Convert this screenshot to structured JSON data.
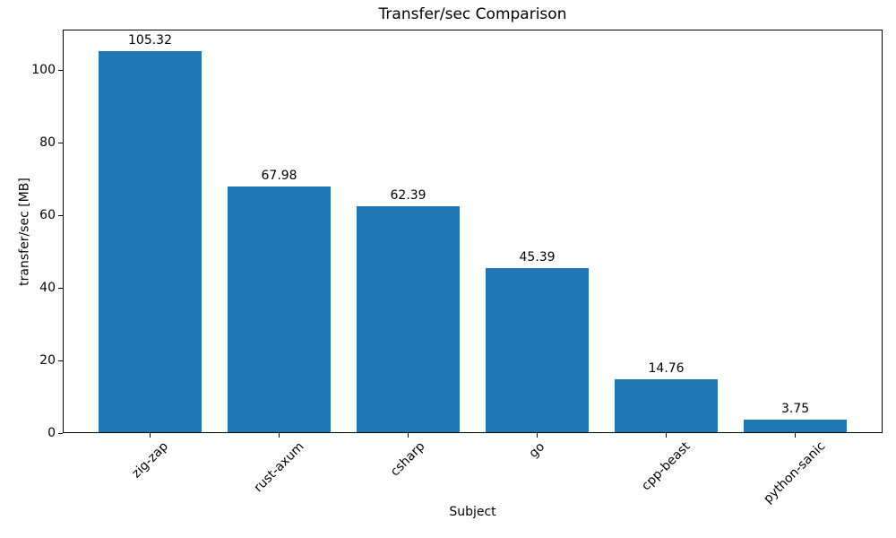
{
  "chart_data": {
    "type": "bar",
    "title": "Transfer/sec Comparison",
    "xlabel": "Subject",
    "ylabel": "transfer/sec [MB]",
    "categories": [
      "zig-zap",
      "rust-axum",
      "csharp",
      "go",
      "cpp-beast",
      "python-sanic"
    ],
    "values": [
      105.32,
      67.98,
      62.39,
      45.39,
      14.76,
      3.75
    ],
    "bar_labels": [
      "105.32",
      "67.98",
      "62.39",
      "45.39",
      "14.76",
      "3.75"
    ],
    "yticks": [
      0,
      20,
      40,
      60,
      80,
      100
    ],
    "ylim": [
      0,
      111.15
    ],
    "grid": false,
    "bar_color": "#1f77b4",
    "spine_color": "#000000",
    "text_color": "#000000",
    "background_color": "#ffffff"
  }
}
